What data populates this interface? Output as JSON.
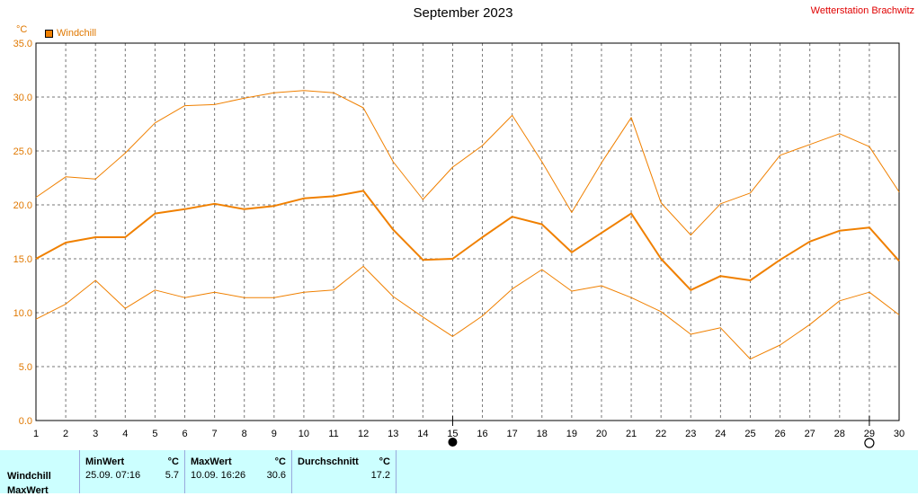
{
  "header": {
    "title": "September 2023",
    "station": "Wetterstation Brachwitz",
    "unit": "°C",
    "legend_label": "Windchill"
  },
  "chart_data": {
    "type": "line",
    "title": "September 2023",
    "ylabel": "°C",
    "xlim": [
      1,
      30
    ],
    "ylim": [
      0,
      35
    ],
    "x_ticks": [
      1,
      2,
      3,
      4,
      5,
      6,
      7,
      8,
      9,
      10,
      11,
      12,
      13,
      14,
      15,
      16,
      17,
      18,
      19,
      20,
      21,
      22,
      23,
      24,
      25,
      26,
      27,
      28,
      29,
      30
    ],
    "y_ticks": [
      "0.0",
      "5.0",
      "10.0",
      "15.0",
      "20.0",
      "25.0",
      "30.0",
      "35.0"
    ],
    "grid": true,
    "legend": "top-left",
    "x": [
      1,
      2,
      3,
      4,
      5,
      6,
      7,
      8,
      9,
      10,
      11,
      12,
      13,
      14,
      15,
      16,
      17,
      18,
      19,
      20,
      21,
      22,
      23,
      24,
      25,
      26,
      27,
      28,
      29,
      30
    ],
    "series": [
      {
        "name": "Windchill",
        "role": "max",
        "color": "#f08000",
        "width": 1,
        "values": [
          20.7,
          22.6,
          22.4,
          24.8,
          27.6,
          29.2,
          29.3,
          29.9,
          30.4,
          30.6,
          30.4,
          29.0,
          24.0,
          20.5,
          23.5,
          25.5,
          28.3,
          24.0,
          19.3,
          23.9,
          28.1,
          20.2,
          17.2,
          20.1,
          21.1,
          24.6,
          25.6,
          26.6,
          25.4,
          21.2
        ]
      },
      {
        "name": "Windchill",
        "role": "mean",
        "color": "#f08000",
        "width": 2,
        "values": [
          15.0,
          16.5,
          17.0,
          17.0,
          19.2,
          19.6,
          20.1,
          19.6,
          19.9,
          20.6,
          20.8,
          21.3,
          17.7,
          14.9,
          15.0,
          17.0,
          18.9,
          18.2,
          15.6,
          17.4,
          19.2,
          15.0,
          12.1,
          13.4,
          13.0,
          14.9,
          16.6,
          17.6,
          17.9,
          14.8
        ]
      },
      {
        "name": "Windchill",
        "role": "min",
        "color": "#f08000",
        "width": 1,
        "values": [
          9.4,
          10.8,
          13.0,
          10.4,
          12.1,
          11.4,
          11.9,
          11.4,
          11.4,
          11.9,
          12.1,
          14.3,
          11.5,
          9.6,
          7.8,
          9.7,
          12.2,
          14.0,
          12.0,
          12.5,
          11.4,
          10.1,
          8.0,
          8.6,
          5.7,
          7.0,
          8.9,
          11.1,
          11.9,
          9.8
        ]
      }
    ],
    "markers": [
      {
        "x": 15,
        "symbol": "full-moon"
      },
      {
        "x": 29,
        "symbol": "new-moon"
      }
    ]
  },
  "panel": {
    "row_label": "Windchill",
    "row_label2": "MaxWert",
    "min": {
      "label": "MinWert",
      "unit": "°C",
      "date": "25.09.  07:16",
      "value": "5.7"
    },
    "max": {
      "label": "MaxWert",
      "unit": "°C",
      "date": "10.09.  16:26",
      "value": "30.6"
    },
    "avg": {
      "label": "Durchschnitt",
      "unit": "°C",
      "value": "17.2"
    }
  }
}
